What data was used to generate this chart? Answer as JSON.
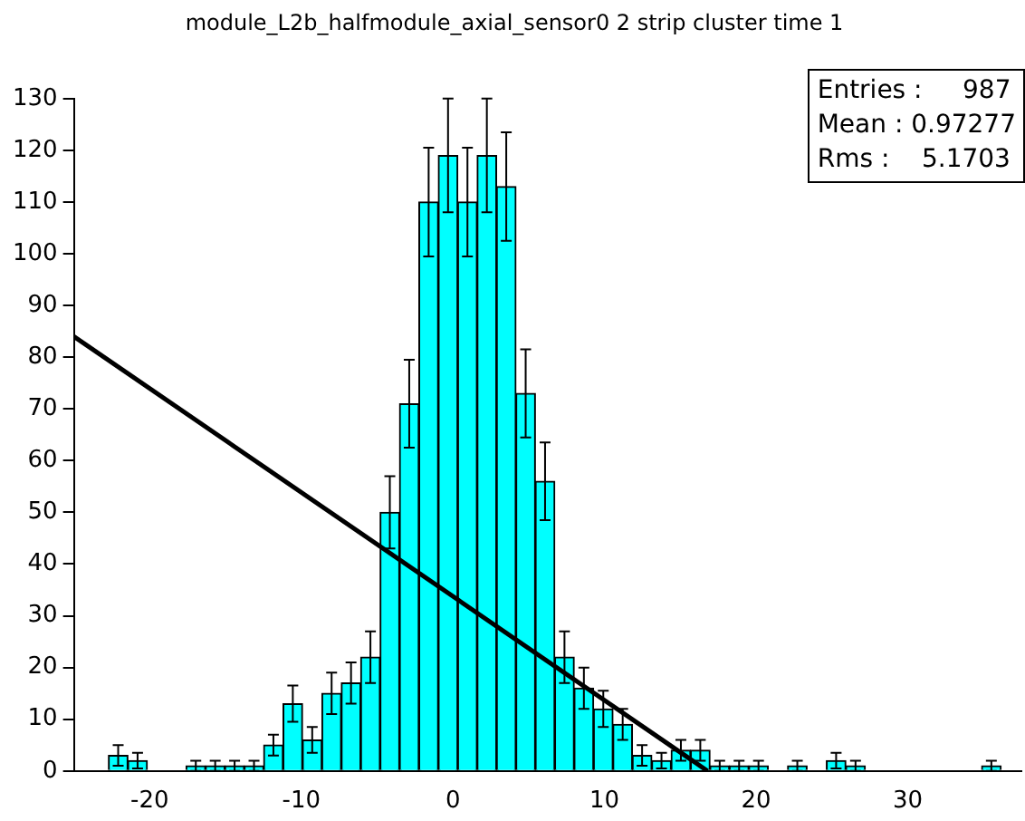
{
  "chart_data": {
    "type": "histogram",
    "title": "module_L2b_halfmodule_axial_sensor0 2 strip cluster time 1",
    "bins": [
      -22.72,
      -21.44,
      -20.16,
      -18.88,
      -17.6,
      -16.32,
      -15.04,
      -13.76,
      -12.48,
      -11.2,
      -9.92,
      -8.64,
      -7.36,
      -6.08,
      -4.8,
      -3.52,
      -2.24,
      -0.96,
      0.32,
      1.6,
      2.88,
      4.16,
      5.44,
      6.72,
      8,
      9.28,
      10.56,
      11.84,
      13.12,
      14.4,
      15.68,
      16.96,
      18.24,
      19.52,
      20.8,
      22.08,
      23.36,
      24.64,
      25.92,
      27.2,
      28.48,
      29.76,
      31.04,
      32.32,
      33.6,
      34.88,
      36.16
    ],
    "series": [
      {
        "type": "histogram",
        "color": "#00ffff",
        "values": [
          3,
          2,
          0,
          0,
          1,
          1,
          1,
          1,
          5,
          13,
          6,
          15,
          17,
          22,
          50,
          71,
          110,
          119,
          110,
          119,
          113,
          73,
          56,
          22,
          16,
          12,
          9,
          3,
          2,
          4,
          4,
          1,
          1,
          1,
          0,
          1,
          0,
          2,
          1,
          0,
          0,
          0,
          0,
          0,
          0,
          1
        ],
        "errors": [
          2,
          1.5,
          null,
          null,
          1,
          1,
          1,
          1,
          2,
          3.5,
          2.5,
          4,
          4,
          5,
          7,
          8.5,
          10.5,
          11,
          10.5,
          11,
          10.5,
          8.5,
          7.5,
          5,
          4,
          3.5,
          3,
          2,
          1.5,
          2,
          2,
          1,
          1,
          1,
          null,
          1,
          null,
          1.5,
          1,
          null,
          null,
          null,
          null,
          null,
          null,
          1
        ]
      },
      {
        "type": "line",
        "color": "#000000",
        "x": [
          -25,
          16.8
        ],
        "values": [
          84,
          0
        ]
      }
    ],
    "xlim": [
      -25,
      37.5
    ],
    "xticks": [
      -20,
      -10,
      0,
      10,
      20,
      30
    ],
    "ylim": [
      0,
      130
    ],
    "yticks": [
      0,
      10,
      20,
      30,
      40,
      50,
      60,
      70,
      80,
      90,
      100,
      110,
      120,
      130
    ],
    "annotations": [
      "Entries :     987",
      "Mean : 0.97277",
      "Rms :    5.1703"
    ]
  }
}
